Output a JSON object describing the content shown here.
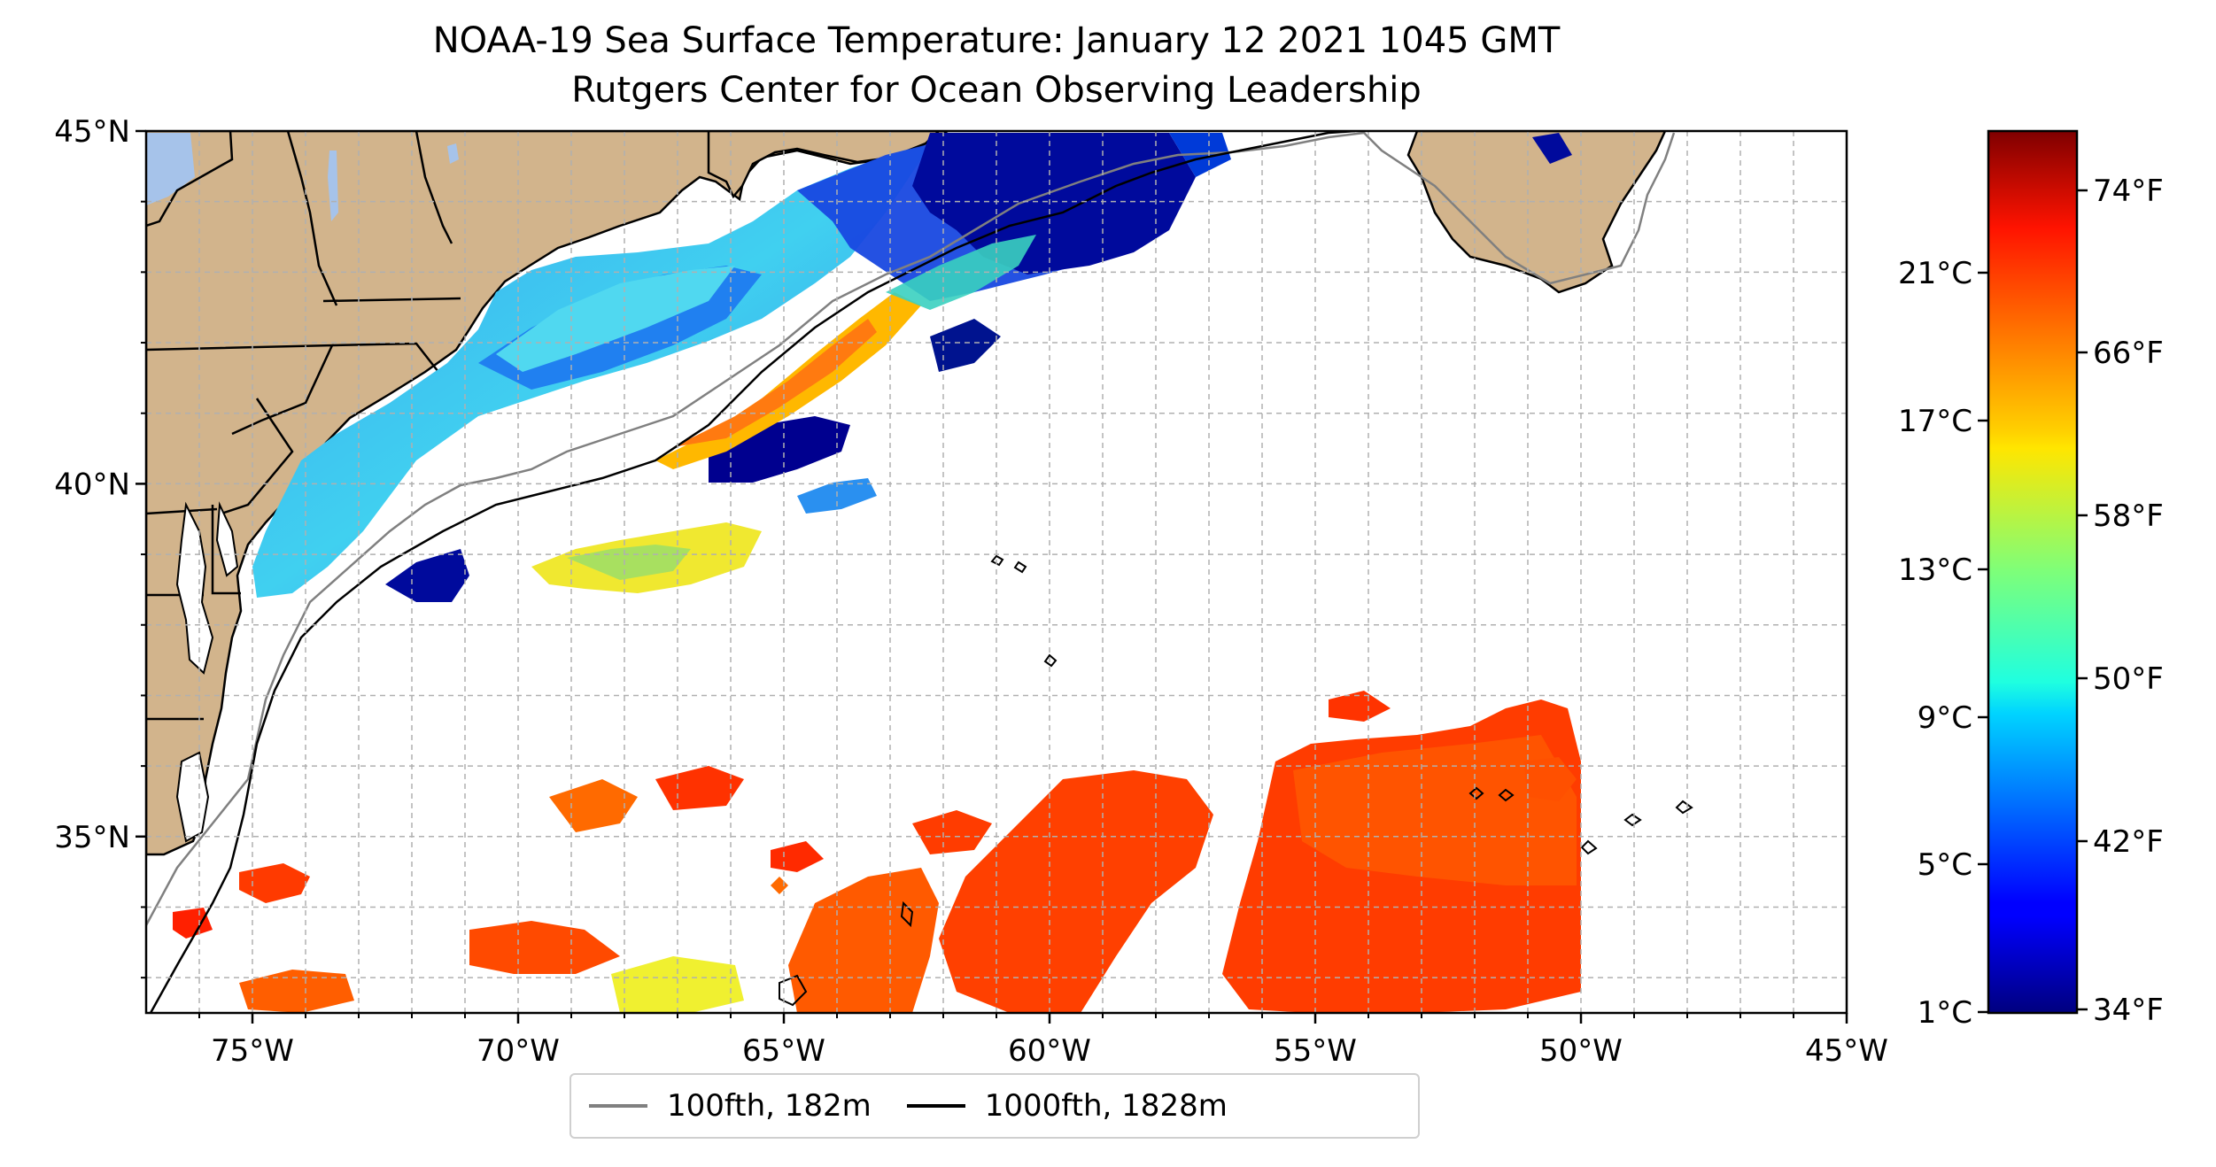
{
  "title": {
    "line1": "NOAA-19 Sea Surface Temperature: January 12 2021 1045 GMT",
    "line2": "Rutgers Center for Ocean Observing Leadership"
  },
  "map": {
    "lon_range": [
      -77,
      -45
    ],
    "lat_range": [
      32.5,
      45
    ],
    "lon_ticks": [
      {
        "value": -75,
        "label": "75°W"
      },
      {
        "value": -70,
        "label": "70°W"
      },
      {
        "value": -65,
        "label": "65°W"
      },
      {
        "value": -60,
        "label": "60°W"
      },
      {
        "value": -55,
        "label": "55°W"
      },
      {
        "value": -50,
        "label": "50°W"
      },
      {
        "value": -45,
        "label": "45°W"
      }
    ],
    "lat_ticks": [
      {
        "value": 45,
        "label": "45°N"
      },
      {
        "value": 40,
        "label": "40°N"
      },
      {
        "value": 35,
        "label": "35°N"
      }
    ],
    "gridlines": true,
    "land_color": "#d2b48c",
    "lake_color": "#a6c3ea",
    "ocean_color": "#ffffff"
  },
  "colorbar": {
    "colormap": "jet",
    "celsius_ticks": [
      "21°C",
      "17°C",
      "13°C",
      "9°C",
      "5°C",
      "1°C"
    ],
    "fahrenheit_ticks": [
      "74°F",
      "66°F",
      "58°F",
      "50°F",
      "42°F",
      "34°F"
    ]
  },
  "legend": {
    "placement": "bottom-center",
    "items": [
      {
        "label": "100fth, 182m",
        "color": "#808080"
      },
      {
        "label": "1000fth, 1828m",
        "color": "#000000"
      }
    ]
  }
}
